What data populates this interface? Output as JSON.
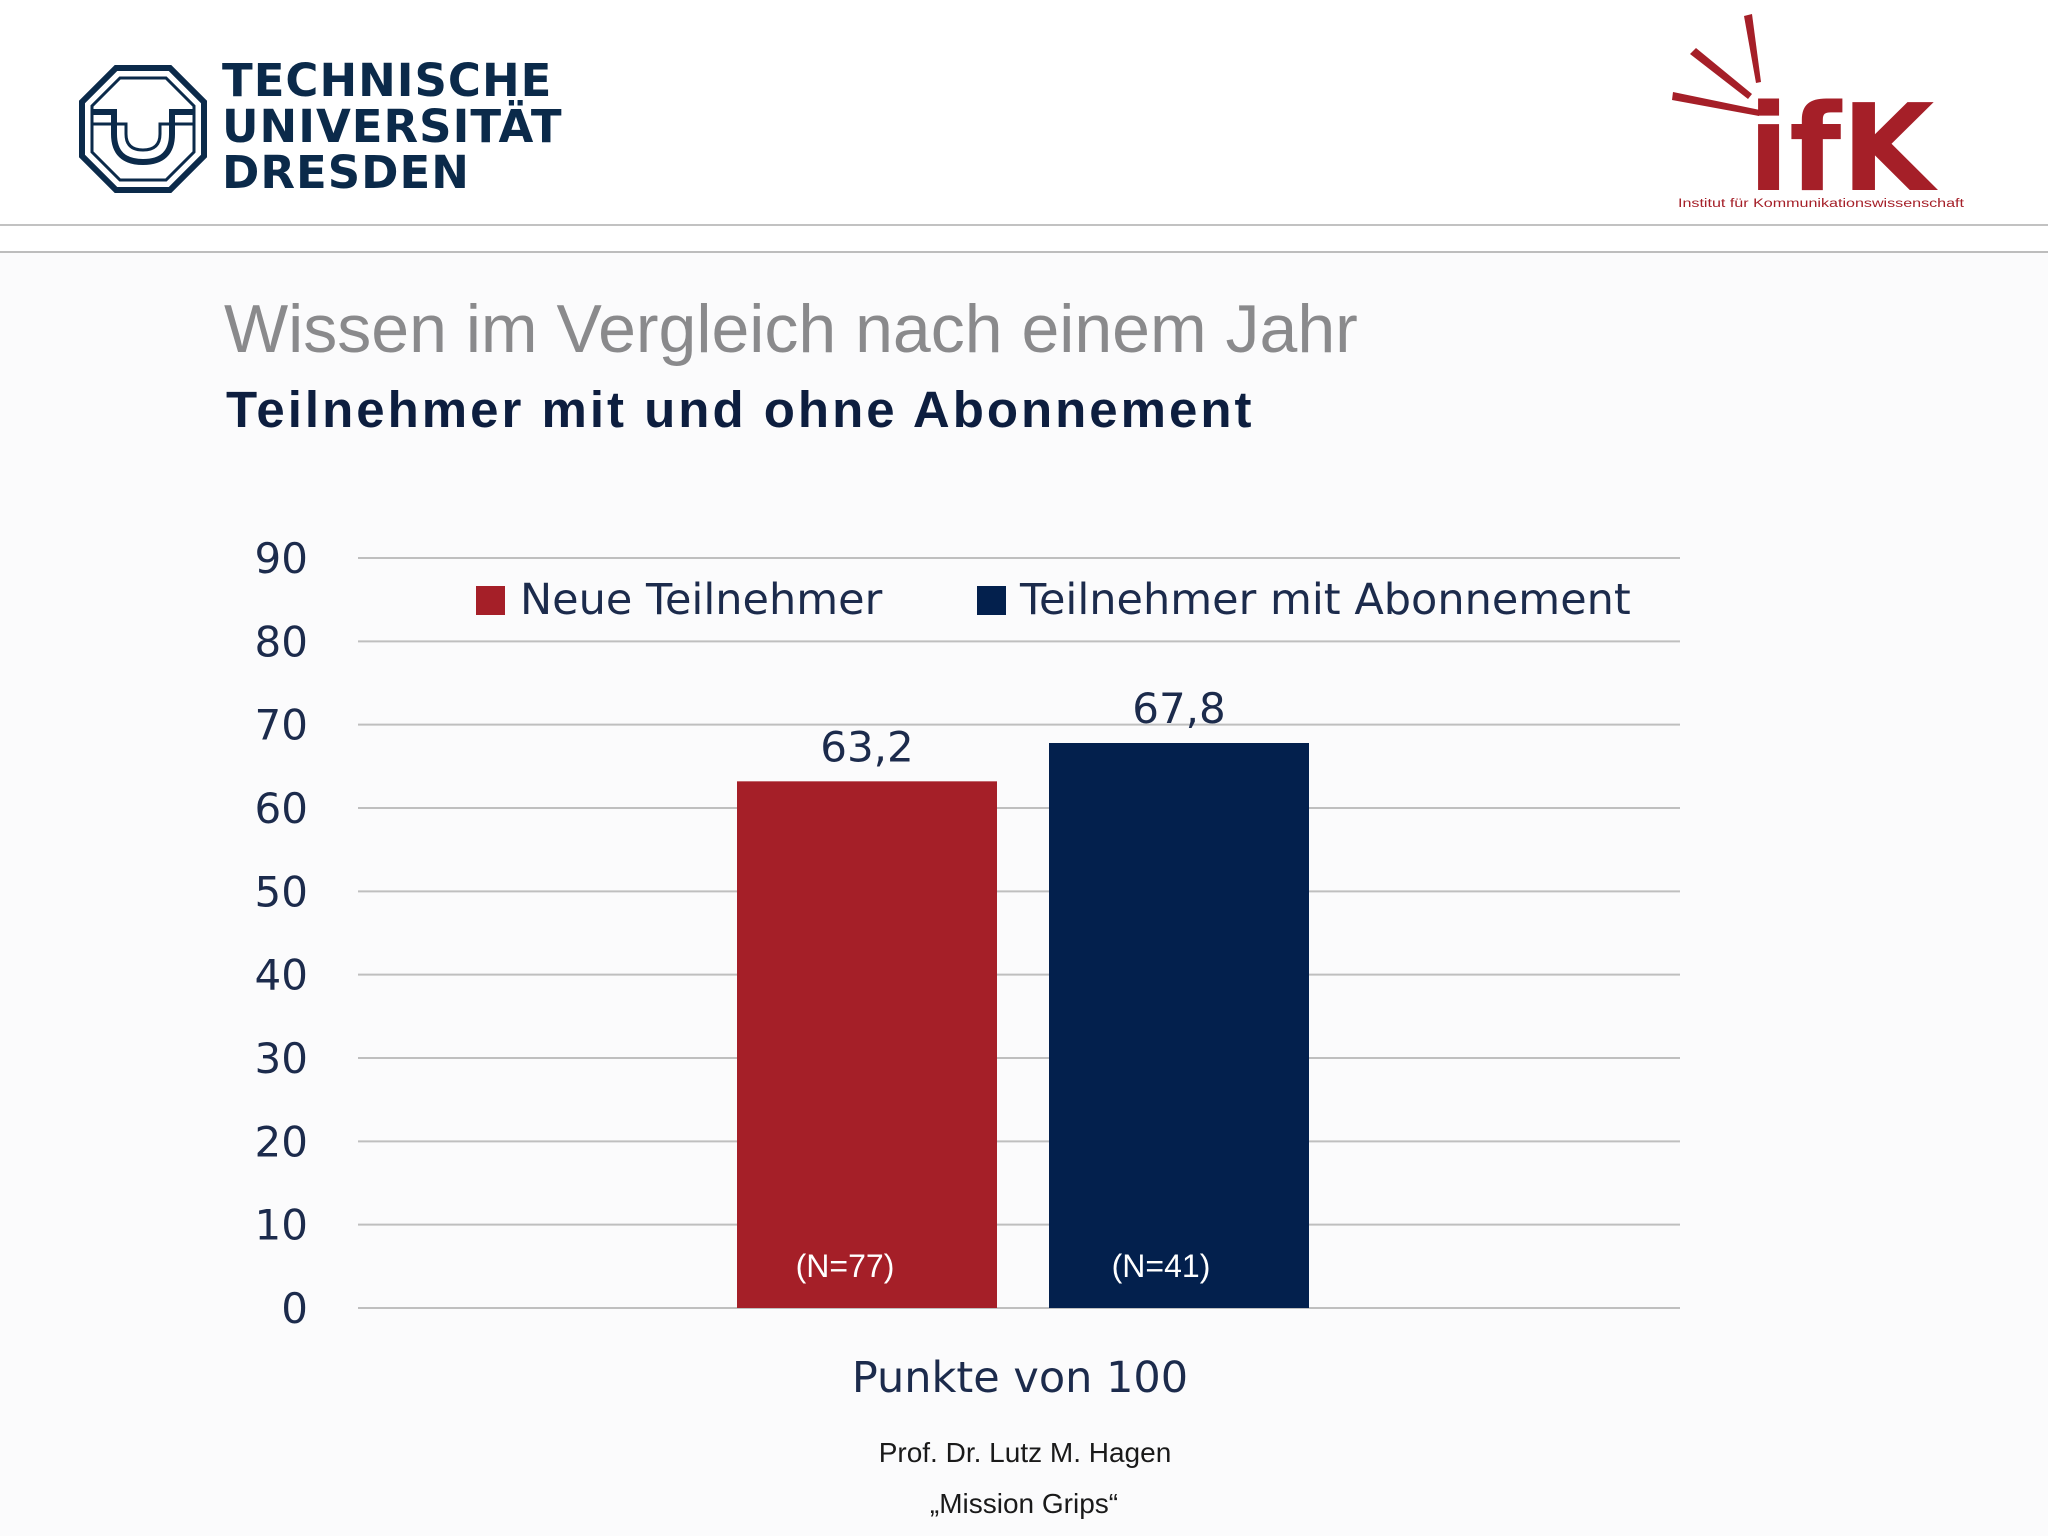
{
  "header": {
    "university_lines": [
      "TECHNISCHE",
      "UNIVERSITÄT",
      "DRESDEN"
    ],
    "institute_logo_text": "ifK",
    "institute_name": "Institut für Kommunikationswissenschaft"
  },
  "slide": {
    "title": "Wissen im Vergleich nach einem Jahr",
    "subtitle": "Teilnehmer mit und ohne Abonnement"
  },
  "chart_data": {
    "type": "bar",
    "xlabel": "Punkte von 100",
    "ylim": [
      0,
      90
    ],
    "y_ticks": [
      0,
      10,
      20,
      30,
      40,
      50,
      60,
      70,
      80,
      90
    ],
    "grid": true,
    "legend_position": "top",
    "series": [
      {
        "name": "Neue Teilnehmer",
        "value": 63.2,
        "label": "63,2",
        "n_label": "(N=77)",
        "color": "#a51f28"
      },
      {
        "name": "Teilnehmer mit Abonnement",
        "value": 67.8,
        "label": "67,8",
        "n_label": "(N=41)",
        "color": "#03204d"
      }
    ]
  },
  "footer": {
    "author": "Prof. Dr. Lutz M. Hagen",
    "project": "„Mission Grips“"
  },
  "colors": {
    "tud_blue": "#0b2a4a",
    "ifk_red": "#a51f28",
    "title_gray": "#8a8a8c",
    "gridline": "#bfbfbf"
  }
}
